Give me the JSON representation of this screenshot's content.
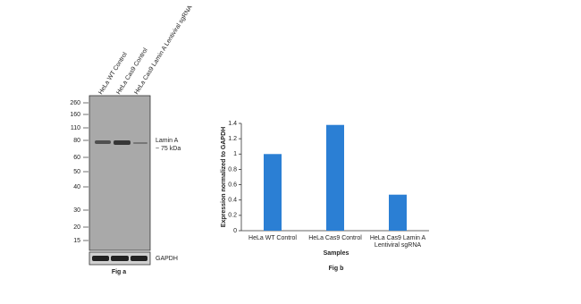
{
  "blot": {
    "lanes": [
      "HeLa WT Control",
      "HeLa Cas9 Control",
      "HeLa Cas9 Lamin A Lentiviral sgRNA"
    ],
    "markers": [
      "260",
      "160",
      "110",
      "80",
      "60",
      "50",
      "40",
      "30",
      "20",
      "15"
    ],
    "band_label": [
      "Lamin A",
      "~ 75 kDa"
    ],
    "loading_control": "GAPDH",
    "caption": "Fig a"
  },
  "chart_data": {
    "type": "bar",
    "categories": [
      "HeLa WT Control",
      "HeLa Cas9 Control",
      "HeLa Cas9 Lamin A Lentiviral sgRNA"
    ],
    "values": [
      1,
      1.38,
      0.47
    ],
    "color": "#2b7fd4",
    "ylim": [
      0,
      1.4
    ],
    "yticks": [
      0,
      0.2,
      0.4,
      0.6,
      0.8,
      1,
      1.2,
      1.4
    ],
    "y_label": "Expression normalized to GAPDH",
    "x_label": "Samples",
    "caption": "Fig b"
  }
}
